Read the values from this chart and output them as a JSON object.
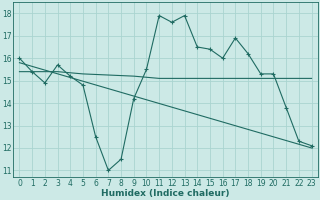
{
  "xlabel": "Humidex (Indice chaleur)",
  "ylabel": "",
  "xlim": [
    -0.5,
    23.5
  ],
  "ylim": [
    10.7,
    18.5
  ],
  "yticks": [
    11,
    12,
    13,
    14,
    15,
    16,
    17,
    18
  ],
  "xticks": [
    0,
    1,
    2,
    3,
    4,
    5,
    6,
    7,
    8,
    9,
    10,
    11,
    12,
    13,
    14,
    15,
    16,
    17,
    18,
    19,
    20,
    21,
    22,
    23
  ],
  "background_color": "#cce9e6",
  "grid_color": "#aad4d0",
  "line_color": "#1f6b62",
  "series": {
    "line1_x": [
      0,
      1,
      2,
      3,
      4,
      5,
      6,
      7,
      8,
      9,
      10,
      11,
      12,
      13,
      14,
      15,
      16,
      17,
      18,
      19,
      20,
      21,
      22,
      23
    ],
    "line1_y": [
      16.0,
      15.4,
      14.9,
      15.7,
      15.2,
      14.8,
      12.5,
      11.0,
      11.5,
      14.2,
      15.5,
      17.9,
      17.6,
      17.9,
      16.5,
      16.4,
      16.0,
      16.9,
      16.2,
      15.3,
      15.3,
      13.8,
      12.3,
      12.1
    ],
    "line2_x": [
      0,
      1,
      2,
      3,
      4,
      5,
      9,
      10,
      11,
      12,
      13,
      14,
      15,
      16,
      17,
      18,
      19,
      20,
      21,
      22,
      23
    ],
    "line2_y": [
      15.4,
      15.4,
      15.4,
      15.4,
      15.35,
      15.3,
      15.2,
      15.15,
      15.1,
      15.1,
      15.1,
      15.1,
      15.1,
      15.1,
      15.1,
      15.1,
      15.1,
      15.1,
      15.1,
      15.1,
      15.1
    ],
    "line3_x": [
      0,
      23
    ],
    "line3_y": [
      15.8,
      12.0
    ]
  }
}
